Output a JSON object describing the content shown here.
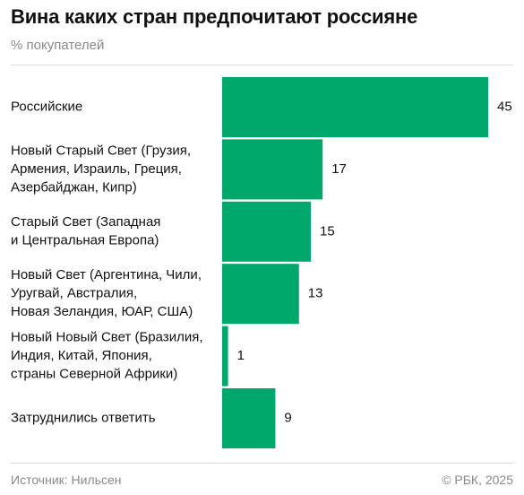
{
  "header": {
    "title": "Вина каких стран предпочитают россияне",
    "subtitle": "% покупателей"
  },
  "footer": {
    "source": "Источник: Нильсен",
    "copyright": "© РБК, 2025"
  },
  "colors": {
    "bar": "#00a86b",
    "text": "#111111",
    "muted": "#8a8a8a"
  },
  "chart_data": {
    "type": "bar",
    "orientation": "horizontal",
    "categories": [
      [
        "Российские"
      ],
      [
        "Новый Старый Свет (Грузия,",
        "Армения, Израиль, Греция,",
        "Азербайджан, Кипр)"
      ],
      [
        "Старый Свет (Западная",
        "и Центральная Европа)"
      ],
      [
        "Новый Свет (Аргентина, Чили,",
        "Уругвай, Австралия,",
        "Новая Зеландия, ЮАР, США)"
      ],
      [
        "Новый Новый Свет (Бразилия,",
        "Индия, Китай, Япония,",
        "страны Северной Африки)"
      ],
      [
        "Затруднились ответить"
      ]
    ],
    "values": [
      45,
      17,
      15,
      13,
      1,
      9
    ],
    "value_labels": [
      "45",
      "17",
      "15",
      "13",
      "1",
      "9"
    ],
    "title": "Вина каких стран предпочитают россияне",
    "subtitle": "% покупателей",
    "xlim": [
      0,
      45
    ],
    "grid": false,
    "legend": "none"
  }
}
